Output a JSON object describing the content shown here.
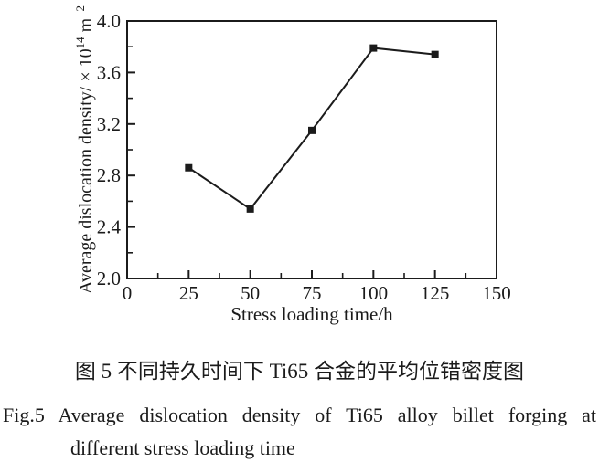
{
  "chart_data": {
    "type": "line",
    "x": [
      25,
      50,
      75,
      100,
      125
    ],
    "y": [
      2.86,
      2.54,
      3.15,
      3.79,
      3.74
    ],
    "series_name": "average dislocation density",
    "marker": "filled-square",
    "line_color": "#1b1b1b",
    "xlabel": "Stress loading time/h",
    "ylabel": "Average dislocation density/ × 10^14 m^-2",
    "ylabel_parts": {
      "main": "Average dislocation density/ × 10",
      "exponent": "14",
      "unit": " m",
      "unit_exponent": "−2"
    },
    "xlim": [
      0,
      150
    ],
    "ylim": [
      2.0,
      4.0
    ],
    "xticks": [
      0,
      25,
      50,
      75,
      100,
      125,
      150
    ],
    "xtick_labels": [
      "0",
      "25",
      "50",
      "75",
      "100",
      "125",
      "150"
    ],
    "yticks": [
      2.0,
      2.4,
      2.8,
      3.2,
      3.6,
      4.0
    ],
    "ytick_labels": [
      "2.0",
      "2.4",
      "2.8",
      "3.2",
      "3.6",
      "4.0"
    ],
    "x_minor_step": 12.5,
    "y_minor_step": 0.2,
    "grid": false,
    "legend": null
  },
  "captions": {
    "chinese": "图 5 不同持久时间下 Ti65 合金的平均位错密度图",
    "english_line1": "Fig.5 Average dislocation density of Ti65 alloy billet forging at",
    "english_line2": "different stress loading time"
  }
}
